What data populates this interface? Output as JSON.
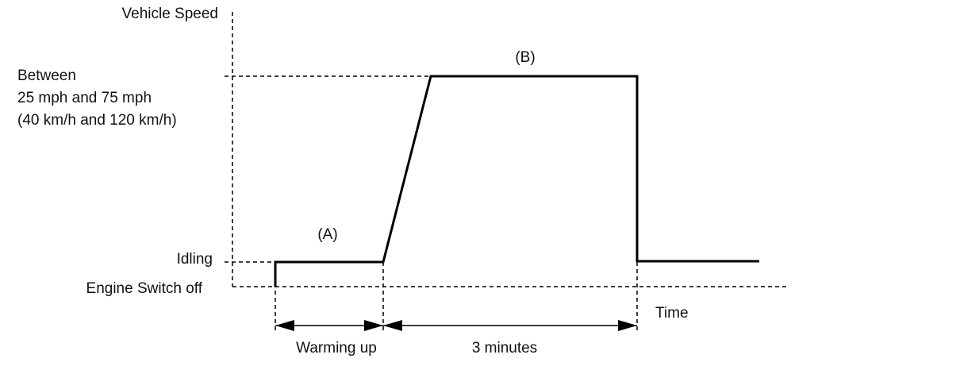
{
  "diagram": {
    "y_axis_title": "Vehicle Speed",
    "x_axis_title": "Time",
    "levels": {
      "speed_range": [
        "Between",
        "25 mph and 75 mph",
        "(40 km/h and 120 km/h)"
      ],
      "idling": "Idling",
      "engine_off": "Engine Switch off"
    },
    "phases": {
      "a": "(A)",
      "b": "(B)"
    },
    "durations": {
      "warming_up": "Warming up",
      "three_minutes": "3 minutes"
    },
    "colors": {
      "line": "#000000",
      "text": "#111111",
      "background": "#ffffff"
    }
  }
}
